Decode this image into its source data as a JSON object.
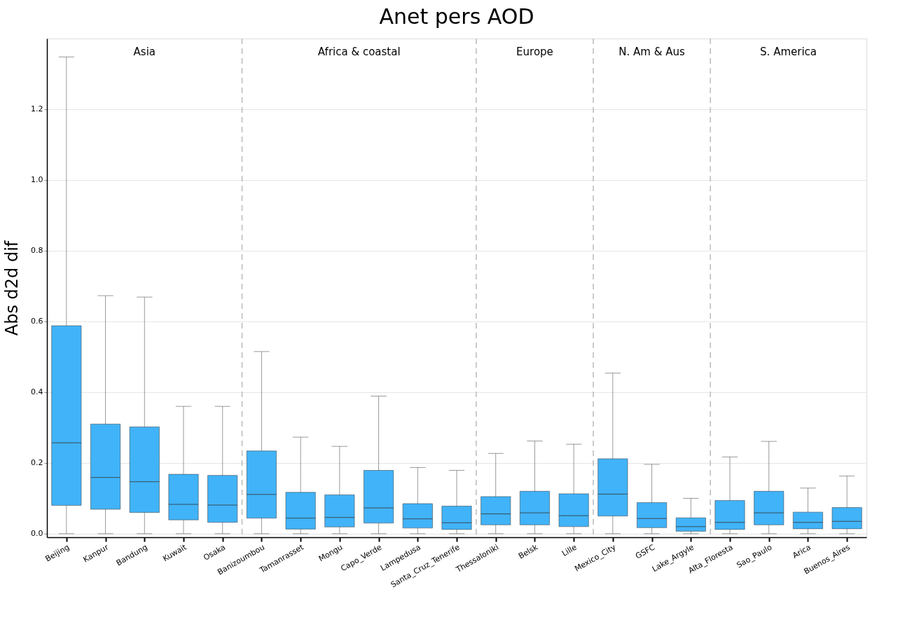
{
  "chart_data": {
    "type": "box",
    "title": "Anet pers AOD",
    "ylabel": "Abs d2d dif",
    "categories": [
      "Beijing",
      "Kanpur",
      "Bandung",
      "Kuwait",
      "Osaka",
      "Banizoumbou",
      "Tamanrasset",
      "Mongu",
      "Capo_Verde",
      "Lampedusa",
      "Santa_Cruz_Tenerife",
      "Thessaloniki",
      "Belsk",
      "Lille",
      "Mexico_City",
      "GSFC",
      "Lake_Argyle",
      "Alta_Floresta",
      "Sao_Paulo",
      "Arica",
      "Buenos_Aires"
    ],
    "series": [
      {
        "color": "#41b3f8",
        "boxes": [
          {
            "low": 0,
            "q1": 0.08,
            "median": 0.257,
            "q3": 0.588,
            "high": 1.348
          },
          {
            "low": 0,
            "q1": 0.069,
            "median": 0.159,
            "q3": 0.31,
            "high": 0.673
          },
          {
            "low": 0,
            "q1": 0.06,
            "median": 0.147,
            "q3": 0.302,
            "high": 0.669
          },
          {
            "low": 0,
            "q1": 0.039,
            "median": 0.083,
            "q3": 0.168,
            "high": 0.36
          },
          {
            "low": 0,
            "q1": 0.032,
            "median": 0.081,
            "q3": 0.165,
            "high": 0.36
          },
          {
            "low": 0,
            "q1": 0.044,
            "median": 0.111,
            "q3": 0.234,
            "high": 0.515
          },
          {
            "low": 0,
            "q1": 0.013,
            "median": 0.044,
            "q3": 0.117,
            "high": 0.273
          },
          {
            "low": 0,
            "q1": 0.019,
            "median": 0.046,
            "q3": 0.11,
            "high": 0.247
          },
          {
            "low": 0,
            "q1": 0.03,
            "median": 0.073,
            "q3": 0.179,
            "high": 0.389
          },
          {
            "low": 0,
            "q1": 0.016,
            "median": 0.042,
            "q3": 0.085,
            "high": 0.187
          },
          {
            "low": 0,
            "q1": 0.012,
            "median": 0.031,
            "q3": 0.078,
            "high": 0.179
          },
          {
            "low": 0,
            "q1": 0.025,
            "median": 0.056,
            "q3": 0.105,
            "high": 0.227
          },
          {
            "low": 0,
            "q1": 0.025,
            "median": 0.059,
            "q3": 0.12,
            "high": 0.262
          },
          {
            "low": 0,
            "q1": 0.02,
            "median": 0.051,
            "q3": 0.113,
            "high": 0.253
          },
          {
            "low": 0,
            "q1": 0.05,
            "median": 0.112,
            "q3": 0.212,
            "high": 0.454
          },
          {
            "low": 0,
            "q1": 0.017,
            "median": 0.043,
            "q3": 0.088,
            "high": 0.196
          },
          {
            "low": 0,
            "q1": 0.007,
            "median": 0.02,
            "q3": 0.045,
            "high": 0.1
          },
          {
            "low": 0,
            "q1": 0.012,
            "median": 0.032,
            "q3": 0.094,
            "high": 0.217
          },
          {
            "low": 0,
            "q1": 0.025,
            "median": 0.059,
            "q3": 0.12,
            "high": 0.261
          },
          {
            "low": 0,
            "q1": 0.014,
            "median": 0.032,
            "q3": 0.061,
            "high": 0.129
          },
          {
            "low": 0,
            "q1": 0.014,
            "median": 0.035,
            "q3": 0.074,
            "high": 0.163
          }
        ]
      }
    ],
    "ylim": [
      -0.01,
      1.4
    ],
    "yticks": [
      {
        "value": 0,
        "label": "0.0"
      },
      0.2,
      0.4,
      0.6,
      0.8,
      {
        "value": 1,
        "label": "1.0"
      },
      1.2
    ],
    "grid": "y",
    "annotations": [
      "Asia",
      "Africa & coastal",
      "Europe",
      "N. Am & Aus",
      "S. America"
    ]
  }
}
